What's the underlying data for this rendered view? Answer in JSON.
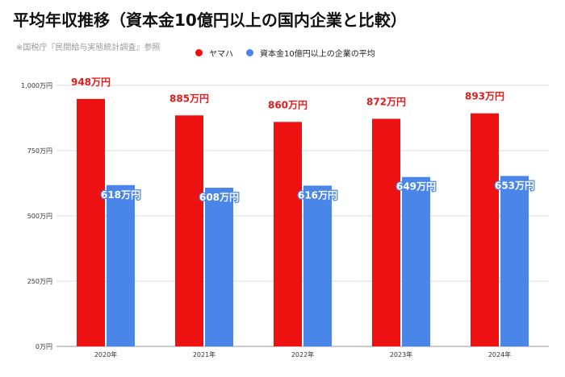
{
  "title": "平均年収推移（資本金10億円以上の国内企業と比較）",
  "source": "※国税庁『民間給与実態統計調査』参照",
  "colors": {
    "series1": "#ee1111",
    "series2": "#4a86e8",
    "grid": "#dddddd",
    "label1": "#e61a1a",
    "label2": "#ffffff"
  },
  "chart_data": {
    "type": "bar",
    "categories": [
      "2020年",
      "2021年",
      "2022年",
      "2023年",
      "2024年"
    ],
    "series": [
      {
        "name": "ヤマハ",
        "values": [
          948,
          885,
          860,
          872,
          893
        ],
        "labels": [
          "948万円",
          "885万円",
          "860万円",
          "872万円",
          "893万円"
        ]
      },
      {
        "name": "資本金10億円以上の企業の平均",
        "values": [
          618,
          608,
          616,
          649,
          653
        ],
        "labels": [
          "618万円",
          "608万円",
          "616万円",
          "649万円",
          "653万円"
        ]
      }
    ],
    "ylim": [
      0,
      1000
    ],
    "yticks": [
      0,
      250,
      500,
      750,
      1000
    ],
    "ytick_labels": [
      "0万円",
      "250万円",
      "500万円",
      "750万円",
      "1,000万円"
    ],
    "grid": true,
    "legend_position": "top"
  }
}
